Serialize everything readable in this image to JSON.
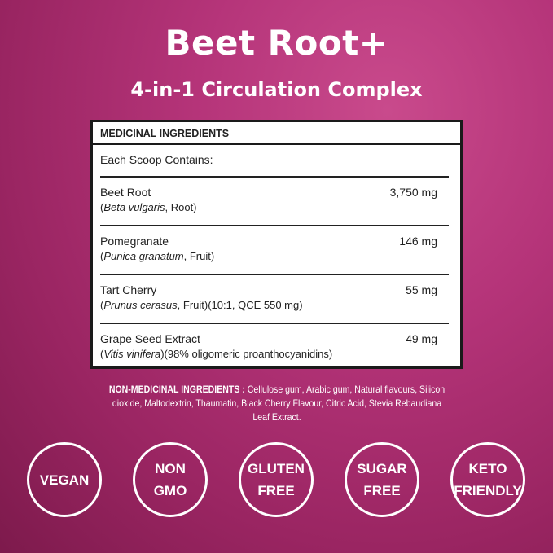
{
  "title": "Beet Root+",
  "subtitle": "4-in-1 Circulation Complex",
  "panel": {
    "header": "MEDICINAL INGREDIENTS",
    "each": "Each Scoop Contains:",
    "rows": [
      {
        "name": "Beet Root",
        "latin": "Beta vulgaris",
        "detail": ", Root)",
        "amount": "3,750 mg"
      },
      {
        "name": "Pomegranate",
        "latin": "Punica granatum",
        "detail": ", Fruit)",
        "amount": "146 mg"
      },
      {
        "name": "Tart Cherry",
        "latin": "Prunus cerasus",
        "detail": ", Fruit)(10:1, QCE 550 mg)",
        "amount": "55 mg"
      },
      {
        "name": "Grape Seed Extract",
        "latin": "Vitis vinifera",
        "detail": ")(98% oligomeric proanthocyanidins)",
        "amount": "49 mg"
      }
    ]
  },
  "non_medicinal": {
    "label": "NON-MEDICINAL INGREDIENTS :",
    "text": "Cellulose gum, Arabic gum, Natural flavours, Silicon dioxide, Maltodextrin, Thaumatin, Black Cherry Flavour, Citric Acid, Stevia Rebaudiana Leaf Extract."
  },
  "badges": [
    [
      "VEGAN"
    ],
    [
      "NON",
      "GMO"
    ],
    [
      "GLUTEN",
      "FREE"
    ],
    [
      "SUGAR",
      "FREE"
    ],
    [
      "KETO",
      "FRIENDLY"
    ]
  ]
}
